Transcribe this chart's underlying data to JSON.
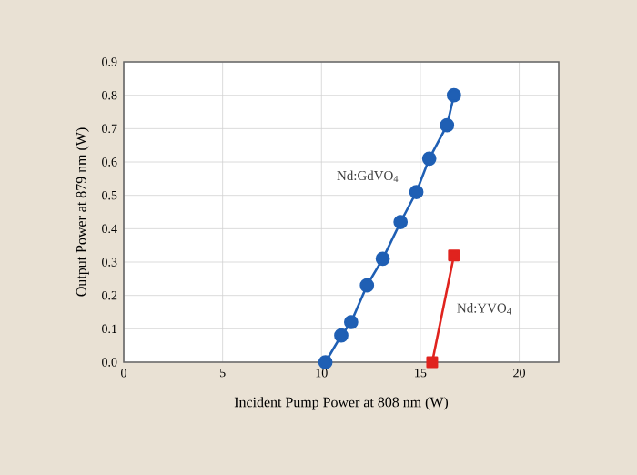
{
  "chart_data": {
    "type": "line",
    "xlabel": "Incident Pump Power at 808 nm (W)",
    "ylabel": "Output Power at 879 nm (W)",
    "xlim": [
      0,
      22
    ],
    "xticks": [
      0,
      5,
      10,
      15,
      20
    ],
    "ylim": [
      0,
      0.9
    ],
    "yticks": [
      {
        "value": 0,
        "label": "0.0"
      },
      0.1,
      0.2,
      0.3,
      0.4,
      0.5,
      0.6,
      0.7,
      0.8,
      0.9
    ],
    "grid": true,
    "line_style": "solid",
    "series": [
      {
        "name": "Nd:GdVO$_{4}$",
        "color": "#1f5fb4",
        "marker": "circle",
        "x": [
          10.2,
          11.0,
          11.5,
          12.3,
          13.1,
          14.0,
          14.8,
          15.45,
          16.35,
          16.7
        ],
        "values": [
          0.0,
          0.08,
          0.12,
          0.23,
          0.31,
          0.42,
          0.51,
          0.61,
          0.71,
          0.8
        ]
      },
      {
        "name": "Nd:YVO$_{4}$",
        "color": "#e0231e",
        "marker": "square",
        "x": [
          15.6,
          16.7
        ],
        "values": [
          0.0,
          0.32
        ]
      }
    ]
  }
}
